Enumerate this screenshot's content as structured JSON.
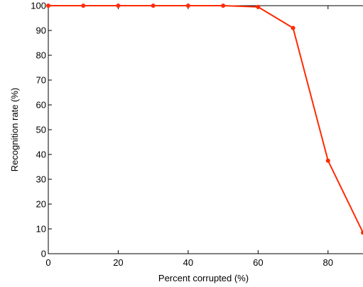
{
  "chart_data": {
    "type": "line",
    "title": "",
    "xlabel": "Percent corrupted (%)",
    "ylabel": "Recognition rate (%)",
    "xlim": [
      0,
      90
    ],
    "ylim": [
      0,
      100
    ],
    "xticks": [
      0,
      20,
      40,
      60,
      80
    ],
    "yticks": [
      0,
      10,
      20,
      30,
      40,
      50,
      60,
      70,
      80,
      90,
      100
    ],
    "grid": false,
    "legend": "none",
    "series": [
      {
        "color": "#ff2a00",
        "x": [
          0,
          10,
          20,
          30,
          40,
          50,
          60,
          70,
          80,
          90
        ],
        "y": [
          100,
          100,
          100,
          100,
          100,
          100,
          99.5,
          91,
          37.5,
          8.5
        ]
      }
    ]
  }
}
